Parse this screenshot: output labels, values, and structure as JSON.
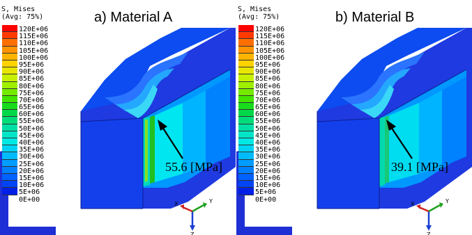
{
  "legend": {
    "title_line1": "S, Mises",
    "title_line2": "(Avg: 75%)",
    "levels": [
      "120E+06",
      "115E+06",
      "110E+06",
      "105E+06",
      "100E+06",
      "95E+06",
      "90E+06",
      "85E+06",
      "80E+06",
      "75E+06",
      "70E+06",
      "65E+06",
      "60E+06",
      "55E+06",
      "50E+06",
      "45E+06",
      "40E+06",
      "35E+06",
      "30E+06",
      "25E+06",
      "20E+06",
      "15E+06",
      "10E+06",
      "5E+06",
      "0E+00"
    ],
    "colors": [
      "#ff0000",
      "#ff3a00",
      "#ff6e00",
      "#ff9400",
      "#ffb400",
      "#ffd200",
      "#e8e600",
      "#c6f000",
      "#9ef000",
      "#74ea00",
      "#42e400",
      "#18dc1c",
      "#00d84a",
      "#00dc7a",
      "#00e0a6",
      "#00e4c8",
      "#00e8e4",
      "#00d4f4",
      "#00bcff",
      "#009cff",
      "#0080ff",
      "#0062ff",
      "#0044f4",
      "#0020e6"
    ]
  },
  "panel_a": {
    "title": "a) Material A",
    "callout": "55.6 [MPa]"
  },
  "panel_b": {
    "title": "b) Material B",
    "callout": "39.1 [MPa]"
  },
  "triad": {
    "x": "X",
    "y": "Y",
    "z": "Z"
  }
}
